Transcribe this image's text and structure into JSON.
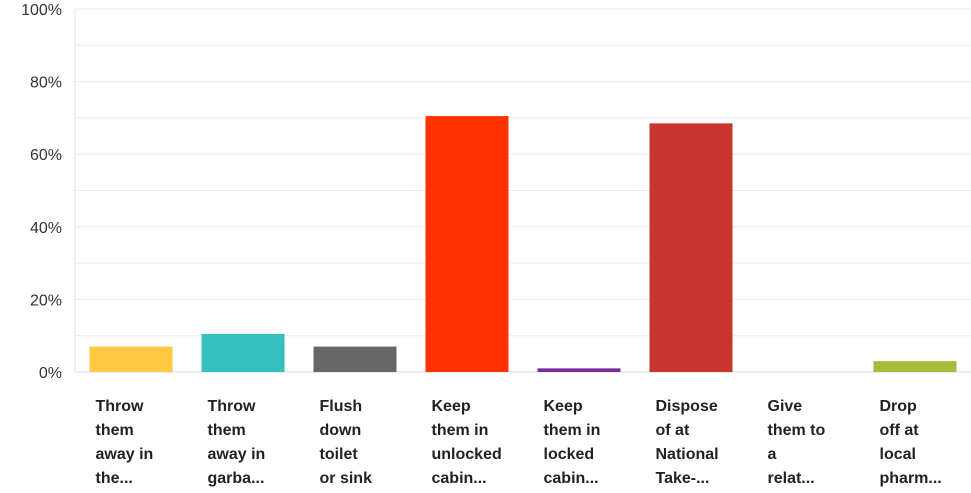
{
  "chart_data": {
    "type": "bar",
    "title": "",
    "xlabel": "",
    "ylabel": "",
    "ylim": [
      0,
      100
    ],
    "yticks": [
      "0%",
      "20%",
      "40%",
      "60%",
      "80%",
      "100%"
    ],
    "ytick_values": [
      0,
      20,
      40,
      60,
      80,
      100
    ],
    "grid": true,
    "legend": "none",
    "categories": [
      [
        "Throw",
        "them",
        "away in",
        "the..."
      ],
      [
        "Throw",
        "them",
        "away in",
        "garba..."
      ],
      [
        "Flush",
        "down",
        "toilet",
        "or sink"
      ],
      [
        "Keep",
        "them in",
        "unlocked",
        "cabin..."
      ],
      [
        "Keep",
        "them in",
        "locked",
        "cabin..."
      ],
      [
        "Dispose",
        "of at",
        "National",
        "Take-..."
      ],
      [
        "Give",
        "them to",
        "a",
        "relat..."
      ],
      [
        "Drop",
        "off at",
        "local",
        "pharm..."
      ]
    ],
    "values": [
      7,
      10.5,
      7,
      70.5,
      1,
      68.5,
      0,
      3
    ],
    "colors": [
      "#ffc843",
      "#35c0c0",
      "#666666",
      "#ff3300",
      "#7b2a9e",
      "#c9352c",
      "#cccccc",
      "#a5bc3d"
    ]
  }
}
